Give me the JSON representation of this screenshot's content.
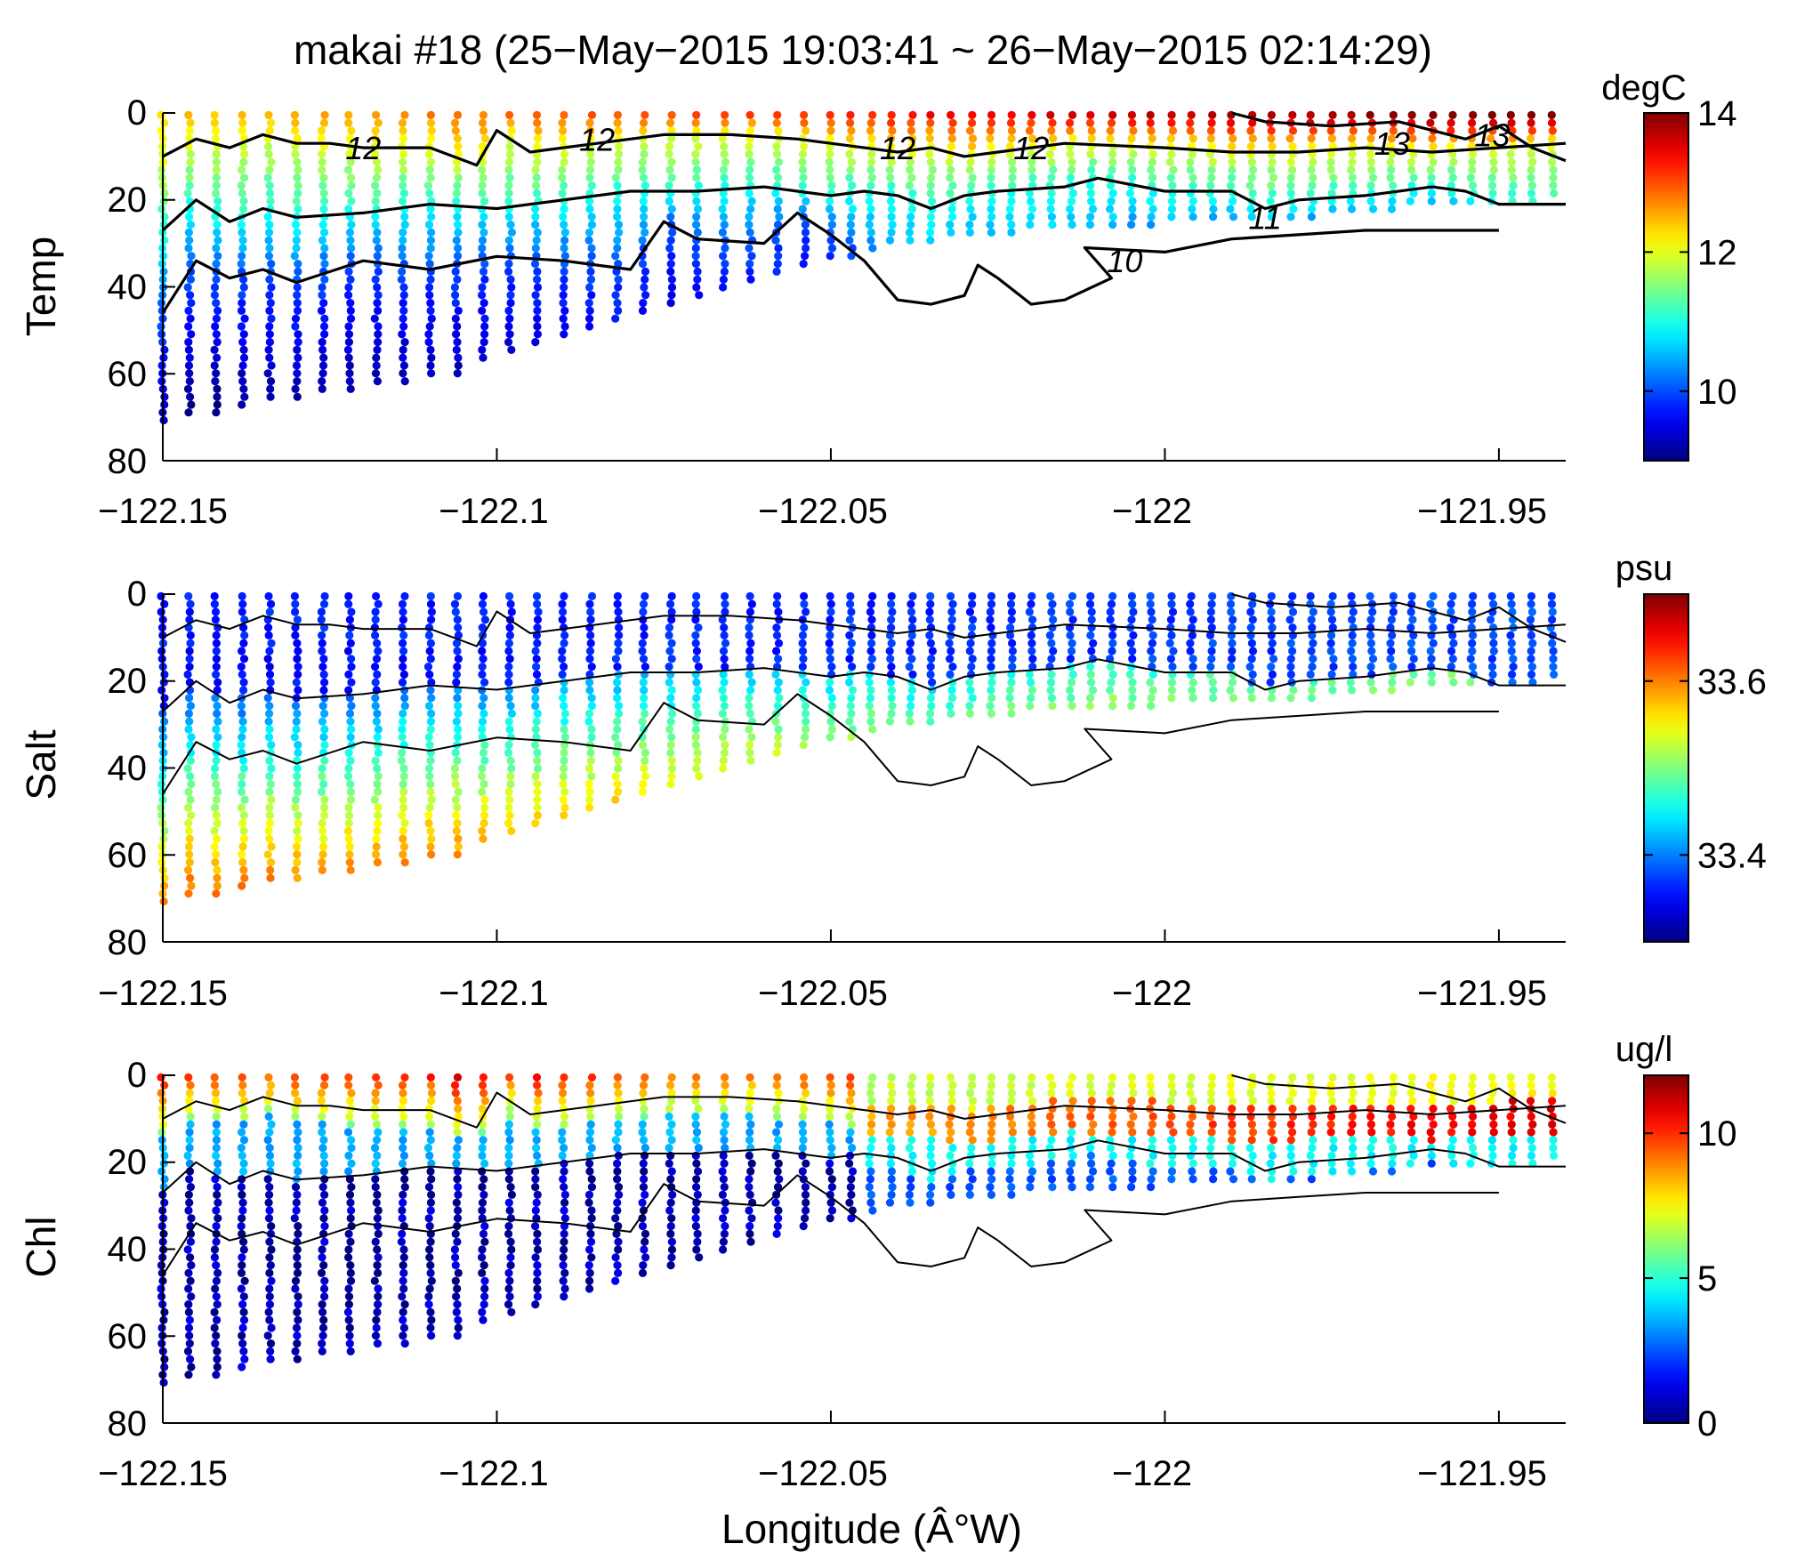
{
  "figure": {
    "title": "makai #18 (25−May−2015 19:03:41 ~ 26−May−2015 02:14:29)",
    "xlabel": "Longitude (Â°W)"
  },
  "chart_data": [
    {
      "type": "scatter",
      "variable": "Temp",
      "ylabel": "Temp",
      "colorbar_unit": "degC",
      "colorbar_ticks": [
        "10",
        "12",
        "14"
      ],
      "colorbar_tick_values": [
        10,
        12,
        14
      ],
      "clim": [
        9,
        14
      ],
      "colormap": "jet",
      "xlim": [
        -122.15,
        -121.94
      ],
      "ylim": [
        0,
        80
      ],
      "y_reversed": true,
      "xticks": [
        "−122.15",
        "−122.1",
        "−122.05",
        "−122",
        "−121.95"
      ],
      "xtick_values": [
        -122.15,
        -122.1,
        -122.05,
        -122.0,
        -121.95
      ],
      "yticks": [
        "0",
        "20",
        "40",
        "60",
        "80"
      ],
      "ytick_values": [
        0,
        20,
        40,
        60,
        80
      ],
      "contour_labels": [
        {
          "text": "12",
          "x": -122.12,
          "y": 8
        },
        {
          "text": "12",
          "x": -122.085,
          "y": 6
        },
        {
          "text": "12",
          "x": -122.04,
          "y": 8
        },
        {
          "text": "12",
          "x": -122.02,
          "y": 8
        },
        {
          "text": "13",
          "x": -121.966,
          "y": 7
        },
        {
          "text": "13",
          "x": -121.951,
          "y": 5
        },
        {
          "text": "11",
          "x": -121.985,
          "y": 24
        },
        {
          "text": "10",
          "x": -122.006,
          "y": 34
        }
      ]
    },
    {
      "type": "scatter",
      "variable": "Salt",
      "ylabel": "Salt",
      "colorbar_unit": "psu",
      "colorbar_ticks": [
        "33.4",
        "33.6"
      ],
      "colorbar_tick_values": [
        33.4,
        33.6
      ],
      "clim": [
        33.3,
        33.7
      ],
      "colormap": "jet",
      "xlim": [
        -122.15,
        -121.94
      ],
      "ylim": [
        0,
        80
      ],
      "y_reversed": true,
      "xticks": [
        "−122.15",
        "−122.1",
        "−122.05",
        "−122",
        "−121.95"
      ],
      "xtick_values": [
        -122.15,
        -122.1,
        -122.05,
        -122.0,
        -121.95
      ],
      "yticks": [
        "0",
        "20",
        "40",
        "60",
        "80"
      ],
      "ytick_values": [
        0,
        20,
        40,
        60,
        80
      ]
    },
    {
      "type": "scatter",
      "variable": "Chl",
      "ylabel": "Chl",
      "colorbar_unit": "ug/l",
      "colorbar_ticks": [
        "0",
        "5",
        "10"
      ],
      "colorbar_tick_values": [
        0,
        5,
        10
      ],
      "clim": [
        0,
        12
      ],
      "colormap": "jet",
      "xlim": [
        -122.15,
        -121.94
      ],
      "ylim": [
        0,
        80
      ],
      "y_reversed": true,
      "xticks": [
        "−122.15",
        "−122.1",
        "−122.05",
        "−122",
        "−121.95"
      ],
      "xtick_values": [
        -122.15,
        -122.1,
        -122.05,
        -122.0,
        -121.95
      ],
      "yticks": [
        "0",
        "20",
        "40",
        "60",
        "80"
      ],
      "ytick_values": [
        0,
        20,
        40,
        60,
        80
      ]
    }
  ],
  "profiles": {
    "longitudes": [
      -122.15,
      -122.146,
      -122.142,
      -122.138,
      -122.134,
      -122.13,
      -122.126,
      -122.122,
      -122.118,
      -122.114,
      -122.11,
      -122.106,
      -122.102,
      -122.098,
      -122.094,
      -122.09,
      -122.086,
      -122.082,
      -122.078,
      -122.074,
      -122.07,
      -122.066,
      -122.062,
      -122.058,
      -122.054,
      -122.05,
      -122.047,
      -122.044,
      -122.041,
      -122.038,
      -122.035,
      -122.032,
      -122.029,
      -122.026,
      -122.023,
      -122.02,
      -122.017,
      -122.014,
      -122.011,
      -122.008,
      -122.005,
      -122.002,
      -121.999,
      -121.996,
      -121.993,
      -121.99,
      -121.987,
      -121.984,
      -121.981,
      -121.978,
      -121.975,
      -121.972,
      -121.969,
      -121.966,
      -121.963,
      -121.96,
      -121.957,
      -121.954,
      -121.951,
      -121.948,
      -121.945,
      -121.942
    ],
    "max_depths": [
      71,
      70,
      69,
      68,
      67,
      66,
      65,
      64,
      63,
      62,
      61,
      60,
      58,
      56,
      54,
      52,
      50,
      48,
      46,
      45,
      43,
      41,
      40,
      38,
      36,
      34,
      33,
      32,
      31,
      30,
      30,
      29,
      29,
      28,
      28,
      27,
      27,
      27,
      26,
      26,
      26,
      26,
      25,
      25,
      25,
      25,
      24,
      24,
      24,
      24,
      23,
      23,
      23,
      23,
      22,
      22,
      22,
      22,
      21,
      21,
      21,
      20
    ],
    "depth_step": 1.8
  },
  "contours": {
    "iso_12": [
      [
        -122.15,
        10
      ],
      [
        -122.145,
        6
      ],
      [
        -122.14,
        8
      ],
      [
        -122.135,
        5
      ],
      [
        -122.13,
        7
      ],
      [
        -122.125,
        7
      ],
      [
        -122.12,
        8
      ],
      [
        -122.11,
        8
      ],
      [
        -122.103,
        12
      ],
      [
        -122.1,
        4
      ],
      [
        -122.095,
        9
      ],
      [
        -122.09,
        8
      ],
      [
        -122.085,
        7
      ],
      [
        -122.08,
        6
      ],
      [
        -122.075,
        5
      ],
      [
        -122.065,
        5
      ],
      [
        -122.055,
        6
      ],
      [
        -122.05,
        7
      ],
      [
        -122.045,
        8
      ],
      [
        -122.04,
        9
      ],
      [
        -122.035,
        8
      ],
      [
        -122.03,
        10
      ],
      [
        -122.025,
        9
      ],
      [
        -122.015,
        7
      ],
      [
        -122.0,
        8
      ],
      [
        -121.99,
        9
      ],
      [
        -121.98,
        9
      ],
      [
        -121.97,
        8
      ],
      [
        -121.96,
        9
      ],
      [
        -121.95,
        8
      ],
      [
        -121.94,
        7
      ]
    ],
    "iso_11": [
      [
        -122.15,
        27
      ],
      [
        -122.145,
        20
      ],
      [
        -122.14,
        25
      ],
      [
        -122.135,
        22
      ],
      [
        -122.13,
        24
      ],
      [
        -122.12,
        23
      ],
      [
        -122.11,
        21
      ],
      [
        -122.1,
        22
      ],
      [
        -122.09,
        20
      ],
      [
        -122.08,
        18
      ],
      [
        -122.07,
        18
      ],
      [
        -122.06,
        17
      ],
      [
        -122.055,
        18
      ],
      [
        -122.05,
        19
      ],
      [
        -122.045,
        18
      ],
      [
        -122.04,
        19
      ],
      [
        -122.035,
        22
      ],
      [
        -122.03,
        19
      ],
      [
        -122.025,
        18
      ],
      [
        -122.015,
        17
      ],
      [
        -122.01,
        15
      ],
      [
        -122.0,
        18
      ],
      [
        -121.99,
        18
      ],
      [
        -121.985,
        22
      ],
      [
        -121.98,
        20
      ],
      [
        -121.97,
        19
      ],
      [
        -121.96,
        17
      ],
      [
        -121.955,
        18
      ],
      [
        -121.95,
        21
      ],
      [
        -121.94,
        21
      ]
    ],
    "iso_10": [
      [
        -122.15,
        46
      ],
      [
        -122.145,
        34
      ],
      [
        -122.14,
        38
      ],
      [
        -122.135,
        36
      ],
      [
        -122.13,
        39
      ],
      [
        -122.12,
        34
      ],
      [
        -122.11,
        36
      ],
      [
        -122.1,
        33
      ],
      [
        -122.09,
        34
      ],
      [
        -122.08,
        36
      ],
      [
        -122.075,
        25
      ],
      [
        -122.07,
        29
      ],
      [
        -122.06,
        30
      ],
      [
        -122.055,
        23
      ],
      [
        -122.05,
        28
      ],
      [
        -122.045,
        34
      ],
      [
        -122.04,
        43
      ],
      [
        -122.035,
        44
      ],
      [
        -122.03,
        42
      ],
      [
        -122.028,
        35
      ],
      [
        -122.025,
        38
      ],
      [
        -122.02,
        44
      ],
      [
        -122.015,
        43
      ],
      [
        -122.008,
        38
      ],
      [
        -122.012,
        31
      ],
      [
        -122.0,
        32
      ],
      [
        -121.99,
        29
      ],
      [
        -121.98,
        28
      ],
      [
        -121.97,
        27
      ],
      [
        -121.96,
        27
      ],
      [
        -121.95,
        27
      ]
    ],
    "iso_13": [
      [
        -121.99,
        0
      ],
      [
        -121.985,
        2
      ],
      [
        -121.975,
        3
      ],
      [
        -121.965,
        2
      ],
      [
        -121.96,
        4
      ],
      [
        -121.955,
        6
      ],
      [
        -121.95,
        3
      ],
      [
        -121.945,
        8
      ],
      [
        -121.94,
        11
      ]
    ]
  }
}
